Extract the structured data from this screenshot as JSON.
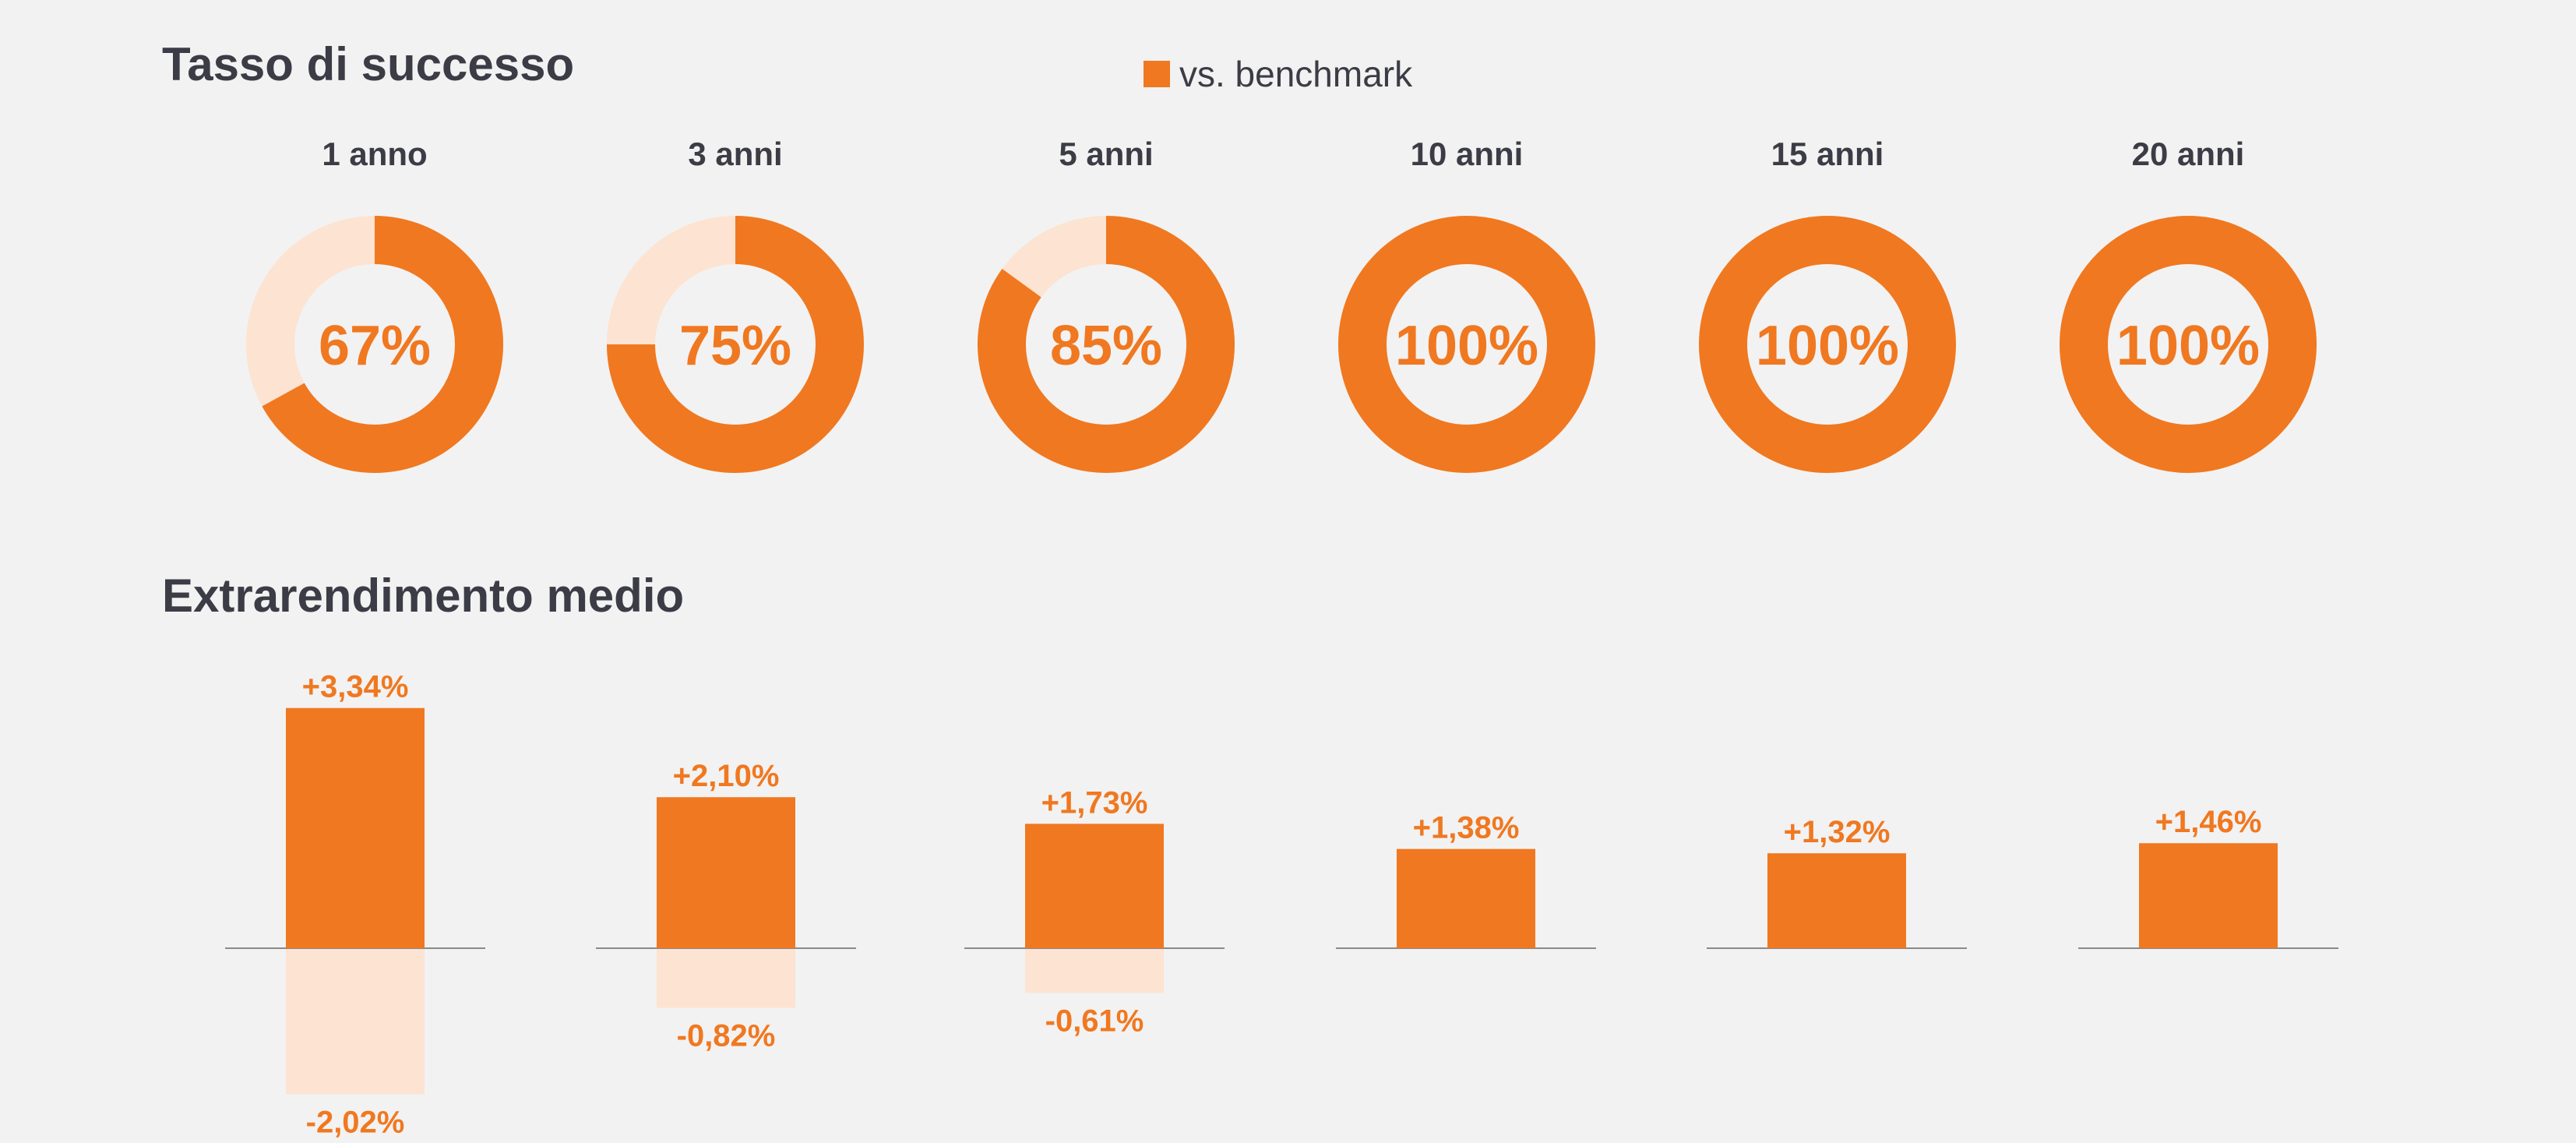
{
  "success_rate": {
    "title": "Tasso di successo",
    "legend_label": "vs. benchmark"
  },
  "excess_return": {
    "title": "Extrarendimento medio"
  },
  "colors": {
    "primary": "#f07820",
    "light": "#fde3d1",
    "text": "#3c3c46",
    "background": "#f2f2f2",
    "baseline": "#8a8a8a"
  },
  "chart_data": [
    {
      "type": "pie",
      "title": "Tasso di successo",
      "style": "donut",
      "legend": [
        "vs. benchmark"
      ],
      "categories": [
        "1 anno",
        "3 anni",
        "5 anni",
        "10 anni",
        "15 anni",
        "20 anni"
      ],
      "values": [
        67,
        75,
        85,
        100,
        100,
        100
      ],
      "value_labels": [
        "67%",
        "75%",
        "85%",
        "100%",
        "100%",
        "100%"
      ]
    },
    {
      "type": "bar",
      "title": "Extrarendimento medio",
      "categories": [
        "1 anno",
        "3 anni",
        "5 anni",
        "10 anni",
        "15 anni",
        "20 anni"
      ],
      "series": [
        {
          "values": [
            3.34,
            2.1,
            1.73,
            1.38,
            1.32,
            1.46
          ],
          "labels": [
            "+3,34%",
            "+2,10%",
            "+1,73%",
            "+1,38%",
            "+1,32%",
            "+1,46%"
          ]
        },
        {
          "values": [
            -2.02,
            -0.82,
            -0.61,
            null,
            null,
            null
          ],
          "labels": [
            "-2,02%",
            "-0,82%",
            "-0,61%",
            null,
            null,
            null
          ]
        }
      ]
    }
  ]
}
